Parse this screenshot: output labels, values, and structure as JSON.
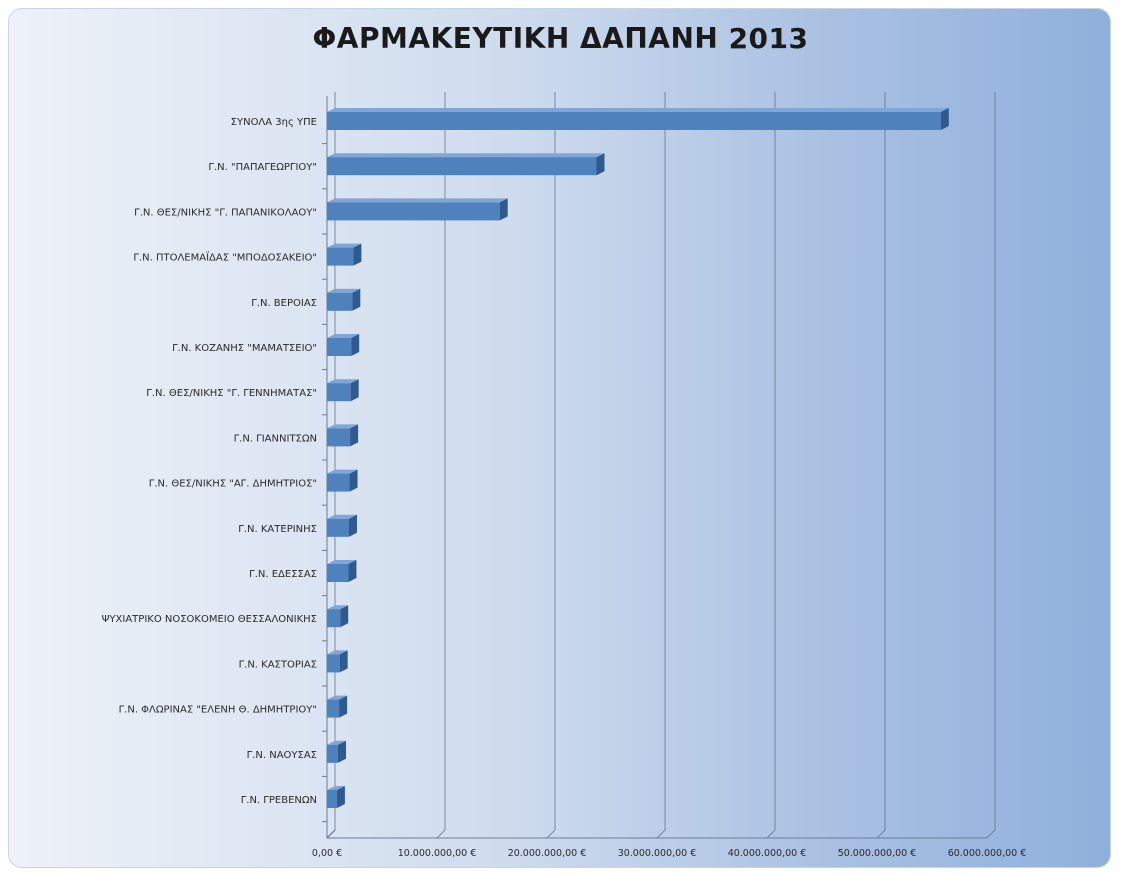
{
  "chart_data": {
    "type": "bar",
    "title": "ΦΑΡΜΑΚΕΥΤΙΚΗ ΔΑΠΑΝΗ 2013",
    "orientation": "horizontal",
    "categories": [
      "ΣΥΝΟΛΑ 3ης ΥΠΕ",
      "Γ.Ν. \"ΠΑΠΑΓΕΩΡΓΙΟΥ\"",
      "Γ.Ν. ΘΕΣ/ΝΙΚΗΣ \"Γ. ΠΑΠΑΝΙΚΟΛΑΟΥ\"",
      "Γ.Ν. ΠΤΟΛΕΜΑΪΔΑΣ \"ΜΠΟΔΟΣΑΚΕΙΟ\"",
      "Γ.Ν. ΒΕΡΟΙΑΣ",
      "Γ.Ν. ΚΟΖΑΝΗΣ \"ΜΑΜΑΤΣΕΙΟ\"",
      "Γ.Ν. ΘΕΣ/ΝΙΚΗΣ \"Γ. ΓΕΝΝΗΜΑΤΑΣ\"",
      "Γ.Ν. ΓΙΑΝΝΙΤΣΩΝ",
      "Γ.Ν. ΘΕΣ/ΝΙΚΗΣ \"ΑΓ. ΔΗΜΗΤΡΙΟΣ\"",
      "Γ.Ν. ΚΑΤΕΡΙΝΗΣ",
      "Γ.Ν. ΕΔΕΣΣΑΣ",
      "ΨΥΧΙΑΤΡΙΚΟ ΝΟΣΟΚΟΜΕΙΟ ΘΕΣΣΑΛΟΝΙΚΗΣ",
      "Γ.Ν. ΚΑΣΤΟΡΙΑΣ",
      "Γ.Ν. ΦΛΩΡΙΝΑΣ \"ΕΛΕΝΗ Θ. ΔΗΜΗΤΡΙΟΥ\"",
      "Γ.Ν. ΝΑΟΥΣΑΣ",
      "Γ.Ν. ΓΡΕΒΕΝΩΝ"
    ],
    "values": [
      55800000,
      24500000,
      15700000,
      2400000,
      2300000,
      2200000,
      2150000,
      2100000,
      2050000,
      2000000,
      1950000,
      1200000,
      1150000,
      1100000,
      1000000,
      900000
    ],
    "xlim": [
      0,
      60000000
    ],
    "xticks": [
      "0,00 €",
      "10.000.000,00 €",
      "20.000.000,00 €",
      "30.000.000,00 €",
      "40.000.000,00 €",
      "50.000.000,00 €",
      "60.000.000,00 €"
    ],
    "xtick_values": [
      0,
      10000000,
      20000000,
      30000000,
      40000000,
      50000000,
      60000000
    ],
    "grid": true,
    "legend": "none",
    "bar_color": "#4f81bd",
    "bar_top_color": "#7fa6d6",
    "bar_side_color": "#2f5a8f"
  }
}
